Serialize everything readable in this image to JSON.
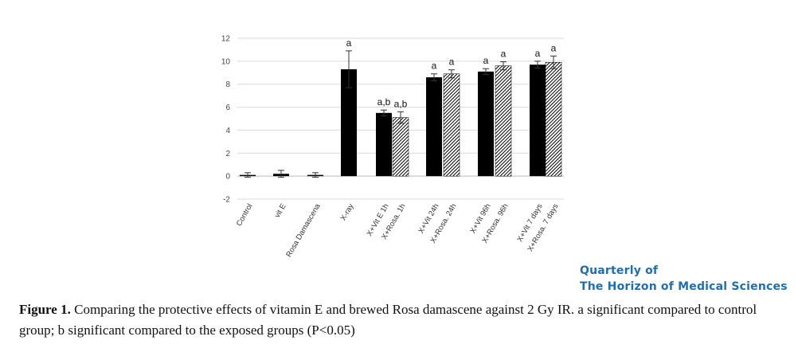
{
  "chart_data": {
    "type": "bar",
    "categories": [
      "Control",
      "vit E",
      "Rosa Damascena",
      "X-ray",
      "X+Vit E 1h",
      "X+Rosa. 1h",
      "X+Vit 24h",
      "X+Rosa. 24h",
      "X+Vit 96h",
      "X+Rosa. 96h",
      "X+Vit 7 days",
      "X+Rosa. 7 days"
    ],
    "values": [
      0.1,
      0.2,
      0.1,
      9.3,
      5.5,
      5.1,
      8.6,
      8.9,
      9.1,
      9.6,
      9.7,
      9.9
    ],
    "errors": [
      0.2,
      0.3,
      0.2,
      1.6,
      0.25,
      0.5,
      0.3,
      0.35,
      0.25,
      0.35,
      0.3,
      0.55
    ],
    "patterns": [
      "solid",
      "solid",
      "solid",
      "solid",
      "solid",
      "hatched",
      "solid",
      "hatched",
      "solid",
      "hatched",
      "solid",
      "hatched"
    ],
    "significance": [
      "",
      "",
      "",
      "a",
      "a,b",
      "a,b",
      "a",
      "a",
      "a",
      "a",
      "a",
      "a"
    ],
    "ylim": [
      -2,
      12
    ],
    "yticks": [
      -2,
      0,
      2,
      4,
      6,
      8,
      10,
      12
    ],
    "grid": true,
    "bar_color": "#000000"
  },
  "logo": {
    "line1": "Quarterly of",
    "line2": "The Horizon of Medical Sciences"
  },
  "caption": {
    "label": "Figure 1.",
    "text": " Comparing the protective effects of vitamin E and brewed Rosa damascene against 2 Gy IR. a significant compared to control group; b significant compared to the exposed groups (P<0.05)"
  }
}
